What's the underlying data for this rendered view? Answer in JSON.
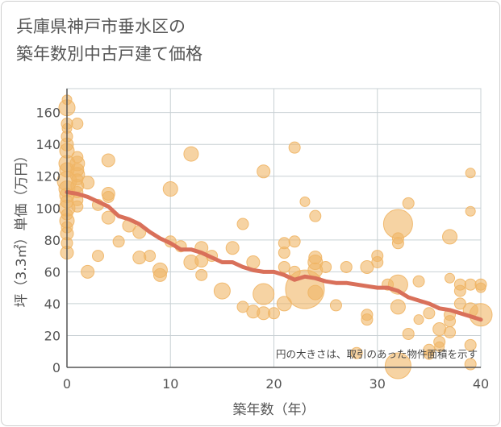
{
  "chart_data": {
    "type": "scatter",
    "title": [
      "兵庫県神戸市垂水区の",
      "築年数別中古戸建て価格"
    ],
    "xlabel": "築年数（年）",
    "ylabel": "坪（3.3㎡）単価（万円）",
    "xlim": [
      0,
      40
    ],
    "ylim": [
      0,
      175
    ],
    "xticks": [
      0,
      10,
      20,
      30,
      40
    ],
    "yticks": [
      0,
      20,
      40,
      60,
      80,
      100,
      120,
      140,
      160
    ],
    "grid": true,
    "annotation": "円の大きさは、取引のあった物件面積を示す",
    "colors": {
      "bubble": "#f0b565",
      "trend": "#d9705a",
      "grid": "#c8d0d4",
      "axis": "#555555"
    },
    "series": [
      {
        "kind": "bubbles",
        "points": [
          [
            0,
            168,
            6
          ],
          [
            0,
            163,
            10
          ],
          [
            0,
            153,
            7
          ],
          [
            0,
            150,
            6
          ],
          [
            0,
            145,
            7
          ],
          [
            0,
            140,
            8
          ],
          [
            0,
            136,
            9
          ],
          [
            0,
            128,
            10
          ],
          [
            0,
            124,
            9
          ],
          [
            0,
            117,
            12
          ],
          [
            0,
            112,
            10
          ],
          [
            0,
            108,
            9
          ],
          [
            0,
            104,
            8
          ],
          [
            0,
            100,
            10
          ],
          [
            0,
            96,
            7
          ],
          [
            0,
            92,
            9
          ],
          [
            0,
            88,
            7
          ],
          [
            0,
            84,
            8
          ],
          [
            0,
            78,
            7
          ],
          [
            0,
            72,
            8
          ],
          [
            1,
            153,
            7
          ],
          [
            1,
            132,
            7
          ],
          [
            1,
            128,
            9
          ],
          [
            1,
            124,
            8
          ],
          [
            1,
            121,
            9
          ],
          [
            1,
            118,
            7
          ],
          [
            1,
            114,
            8
          ],
          [
            1,
            110,
            7
          ],
          [
            1,
            105,
            7
          ],
          [
            1,
            101,
            7
          ],
          [
            2,
            116,
            8
          ],
          [
            2,
            60,
            8
          ],
          [
            3,
            102,
            7
          ],
          [
            3,
            70,
            7
          ],
          [
            4,
            130,
            8
          ],
          [
            4,
            109,
            8
          ],
          [
            4,
            107,
            7
          ],
          [
            4,
            94,
            8
          ],
          [
            5,
            79,
            7
          ],
          [
            6,
            89,
            8
          ],
          [
            7,
            85,
            8
          ],
          [
            7,
            69,
            8
          ],
          [
            8,
            70,
            7
          ],
          [
            9,
            61,
            9
          ],
          [
            9,
            58,
            8
          ],
          [
            10,
            112,
            9
          ],
          [
            10,
            79,
            7
          ],
          [
            11,
            76,
            7
          ],
          [
            12,
            134,
            9
          ],
          [
            12,
            66,
            9
          ],
          [
            13,
            75,
            8
          ],
          [
            13,
            67,
            8
          ],
          [
            13,
            58,
            7
          ],
          [
            14,
            70,
            7
          ],
          [
            15,
            48,
            10
          ],
          [
            16,
            75,
            8
          ],
          [
            17,
            90,
            7
          ],
          [
            17,
            38,
            7
          ],
          [
            18,
            66,
            8
          ],
          [
            18,
            35,
            8
          ],
          [
            19,
            123,
            8
          ],
          [
            19,
            46,
            13
          ],
          [
            19,
            34,
            8
          ],
          [
            20,
            34,
            7
          ],
          [
            21,
            78,
            7
          ],
          [
            21,
            72,
            7
          ],
          [
            21,
            63,
            7
          ],
          [
            21,
            40,
            9
          ],
          [
            22,
            138,
            7
          ],
          [
            22,
            79,
            7
          ],
          [
            22,
            60,
            7
          ],
          [
            23,
            49,
            24
          ],
          [
            23,
            104,
            6
          ],
          [
            24,
            95,
            7
          ],
          [
            24,
            69,
            8
          ],
          [
            24,
            66,
            9
          ],
          [
            24,
            61,
            9
          ],
          [
            24,
            47,
            9
          ],
          [
            25,
            63,
            7
          ],
          [
            26,
            39,
            7
          ],
          [
            27,
            63,
            7
          ],
          [
            28,
            9,
            7
          ],
          [
            29,
            63,
            8
          ],
          [
            29,
            33,
            7
          ],
          [
            29,
            30,
            7
          ],
          [
            30,
            70,
            7
          ],
          [
            30,
            66,
            7
          ],
          [
            31,
            52,
            7
          ],
          [
            32,
            90,
            18
          ],
          [
            32,
            81,
            7
          ],
          [
            32,
            78,
            7
          ],
          [
            32,
            52,
            12
          ],
          [
            32,
            38,
            9
          ],
          [
            32,
            1,
            16
          ],
          [
            33,
            103,
            7
          ],
          [
            33,
            21,
            7
          ],
          [
            34,
            54,
            7
          ],
          [
            34,
            30,
            6
          ],
          [
            35,
            34,
            7
          ],
          [
            35,
            11,
            7
          ],
          [
            35,
            8,
            6
          ],
          [
            36,
            24,
            8
          ],
          [
            36,
            16,
            7
          ],
          [
            36,
            13,
            6
          ],
          [
            37,
            82,
            9
          ],
          [
            37,
            56,
            6
          ],
          [
            37,
            33,
            7
          ],
          [
            37,
            29,
            7
          ],
          [
            37,
            22,
            7
          ],
          [
            38,
            52,
            7
          ],
          [
            38,
            48,
            7
          ],
          [
            38,
            40,
            7
          ],
          [
            39,
            122,
            6
          ],
          [
            39,
            98,
            6
          ],
          [
            39,
            52,
            7
          ],
          [
            39,
            36,
            9
          ],
          [
            39,
            14,
            7
          ],
          [
            39,
            2,
            7
          ],
          [
            40,
            52,
            7
          ],
          [
            40,
            50,
            6
          ],
          [
            40,
            33,
            14
          ]
        ]
      },
      {
        "kind": "trend",
        "points": [
          [
            0,
            110
          ],
          [
            1,
            109
          ],
          [
            2,
            107
          ],
          [
            3,
            104
          ],
          [
            4,
            101
          ],
          [
            5,
            95
          ],
          [
            6,
            93
          ],
          [
            7,
            90
          ],
          [
            8,
            85
          ],
          [
            9,
            81
          ],
          [
            10,
            78
          ],
          [
            11,
            74
          ],
          [
            12,
            74
          ],
          [
            13,
            72
          ],
          [
            14,
            69
          ],
          [
            15,
            66
          ],
          [
            16,
            66
          ],
          [
            17,
            63
          ],
          [
            18,
            61
          ],
          [
            19,
            60
          ],
          [
            20,
            60
          ],
          [
            21,
            58
          ],
          [
            22,
            55
          ],
          [
            23,
            57
          ],
          [
            24,
            56
          ],
          [
            25,
            54
          ],
          [
            26,
            53
          ],
          [
            27,
            53
          ],
          [
            28,
            52
          ],
          [
            29,
            51
          ],
          [
            30,
            50
          ],
          [
            31,
            50
          ],
          [
            32,
            48
          ],
          [
            33,
            44
          ],
          [
            34,
            42
          ],
          [
            35,
            40
          ],
          [
            36,
            37
          ],
          [
            37,
            36
          ],
          [
            38,
            34
          ],
          [
            39,
            32
          ],
          [
            40,
            30
          ]
        ]
      }
    ]
  }
}
